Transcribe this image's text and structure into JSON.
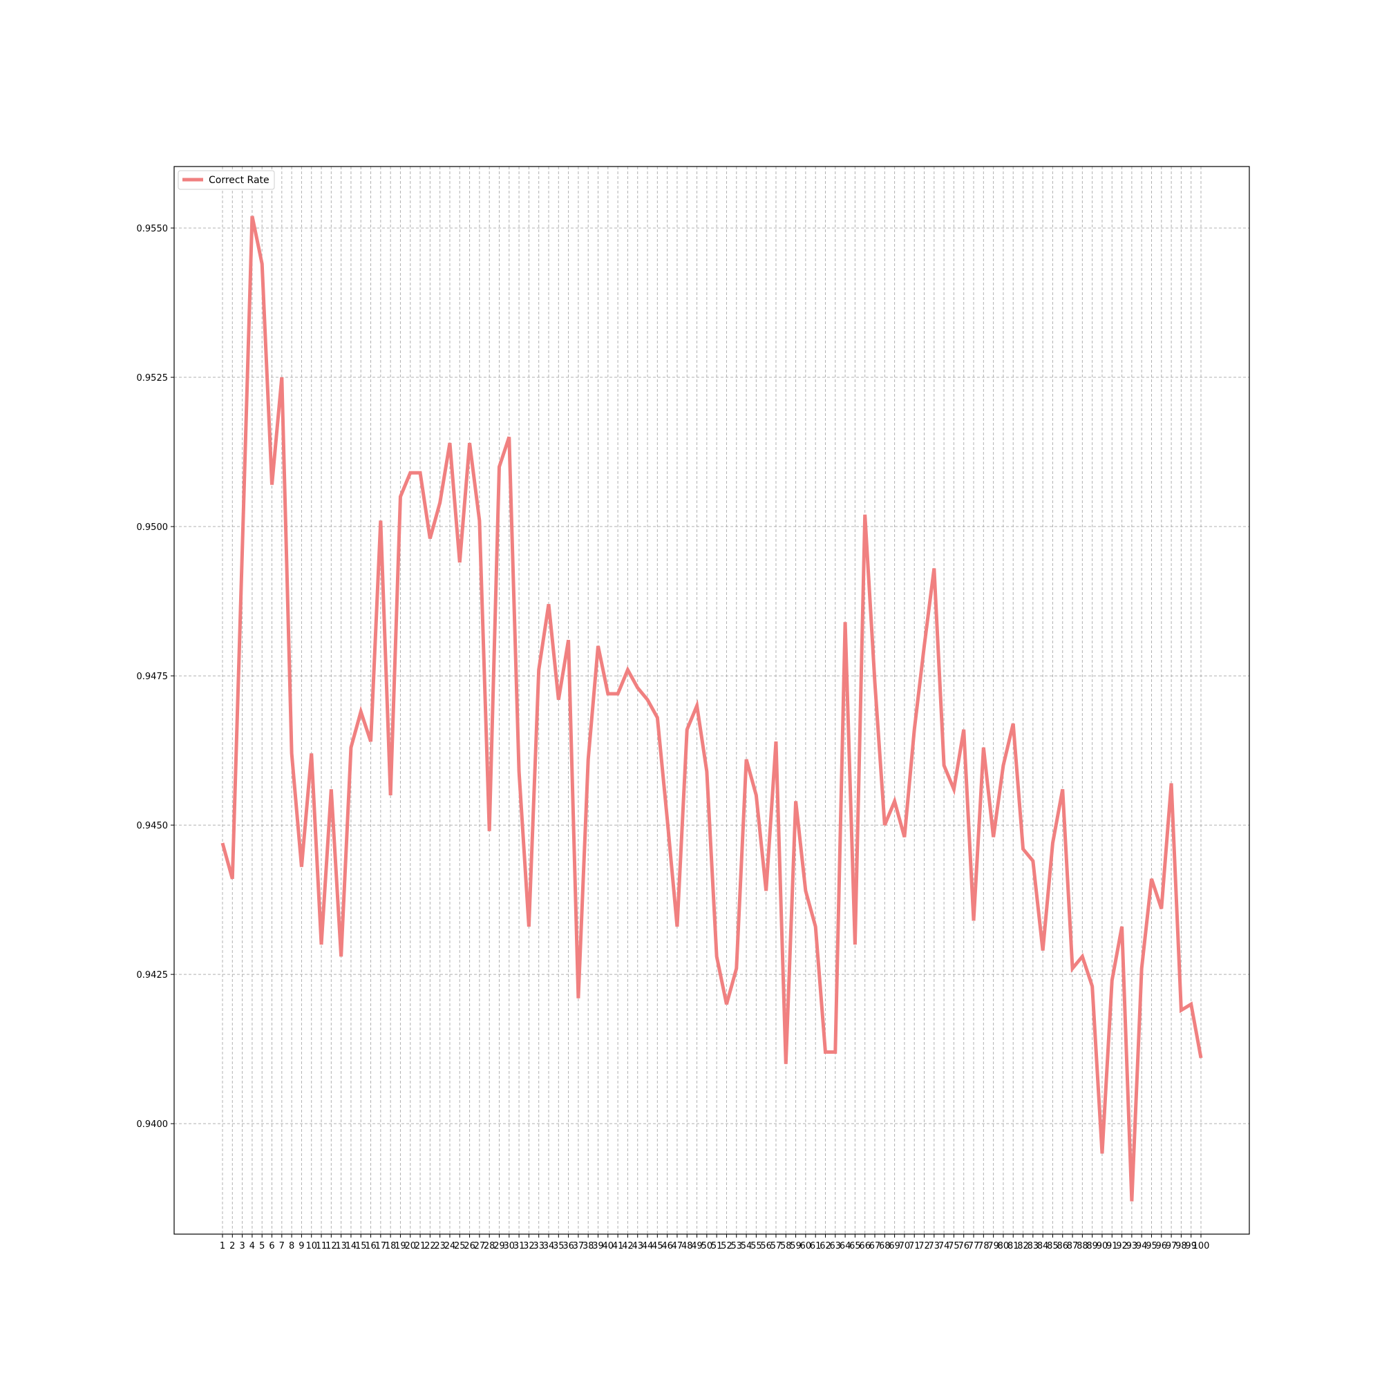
{
  "chart_data": {
    "type": "line",
    "title": "",
    "xlabel": "",
    "ylabel": "",
    "ylim": [
      0.93815,
      0.95603
    ],
    "y_ticks": [
      "0.9400",
      "0.9425",
      "0.9450",
      "0.9475",
      "0.9500",
      "0.9525",
      "0.9550"
    ],
    "grid": true,
    "legend": {
      "placement": "upper-left"
    },
    "x": [
      1,
      2,
      3,
      4,
      5,
      6,
      7,
      8,
      9,
      10,
      11,
      12,
      13,
      14,
      15,
      16,
      17,
      18,
      19,
      20,
      21,
      22,
      23,
      24,
      25,
      26,
      27,
      28,
      29,
      30,
      31,
      32,
      33,
      34,
      35,
      36,
      37,
      38,
      39,
      40,
      41,
      42,
      43,
      44,
      45,
      46,
      47,
      48,
      49,
      50,
      51,
      52,
      53,
      54,
      55,
      56,
      57,
      58,
      59,
      60,
      61,
      62,
      63,
      64,
      65,
      66,
      67,
      68,
      69,
      70,
      71,
      72,
      73,
      74,
      75,
      76,
      77,
      78,
      79,
      80,
      81,
      82,
      83,
      84,
      85,
      86,
      87,
      88,
      89,
      90,
      91,
      92,
      93,
      94,
      95,
      96,
      97,
      98,
      99,
      100
    ],
    "series": [
      {
        "name": "Correct Rate",
        "color": "#f08080",
        "values": [
          0.9447,
          0.9441,
          0.9496,
          0.9552,
          0.9544,
          0.9507,
          0.9525,
          0.9462,
          0.9443,
          0.9462,
          0.943,
          0.9456,
          0.9428,
          0.9463,
          0.9469,
          0.9464,
          0.9501,
          0.9455,
          0.9505,
          0.9509,
          0.9509,
          0.9498,
          0.9504,
          0.9514,
          0.9494,
          0.9514,
          0.9501,
          0.9449,
          0.951,
          0.9515,
          0.9459,
          0.9433,
          0.9476,
          0.9487,
          0.9471,
          0.9481,
          0.9421,
          0.9461,
          0.948,
          0.9472,
          0.9472,
          0.9476,
          0.9473,
          0.9471,
          0.9468,
          0.9451,
          0.9433,
          0.9466,
          0.947,
          0.9459,
          0.9428,
          0.942,
          0.9426,
          0.9461,
          0.9455,
          0.9439,
          0.9464,
          0.941,
          0.9454,
          0.9439,
          0.9433,
          0.9412,
          0.9412,
          0.9484,
          0.943,
          0.9502,
          0.9474,
          0.945,
          0.9454,
          0.9448,
          0.9466,
          0.948,
          0.9493,
          0.946,
          0.9456,
          0.9466,
          0.9434,
          0.9463,
          0.9448,
          0.946,
          0.9467,
          0.9446,
          0.9444,
          0.9429,
          0.9447,
          0.9456,
          0.9426,
          0.9428,
          0.9423,
          0.9395,
          0.9424,
          0.9433,
          0.9387,
          0.9426,
          0.9441,
          0.9436,
          0.9457,
          0.9419,
          0.942,
          0.9411
        ]
      }
    ]
  }
}
